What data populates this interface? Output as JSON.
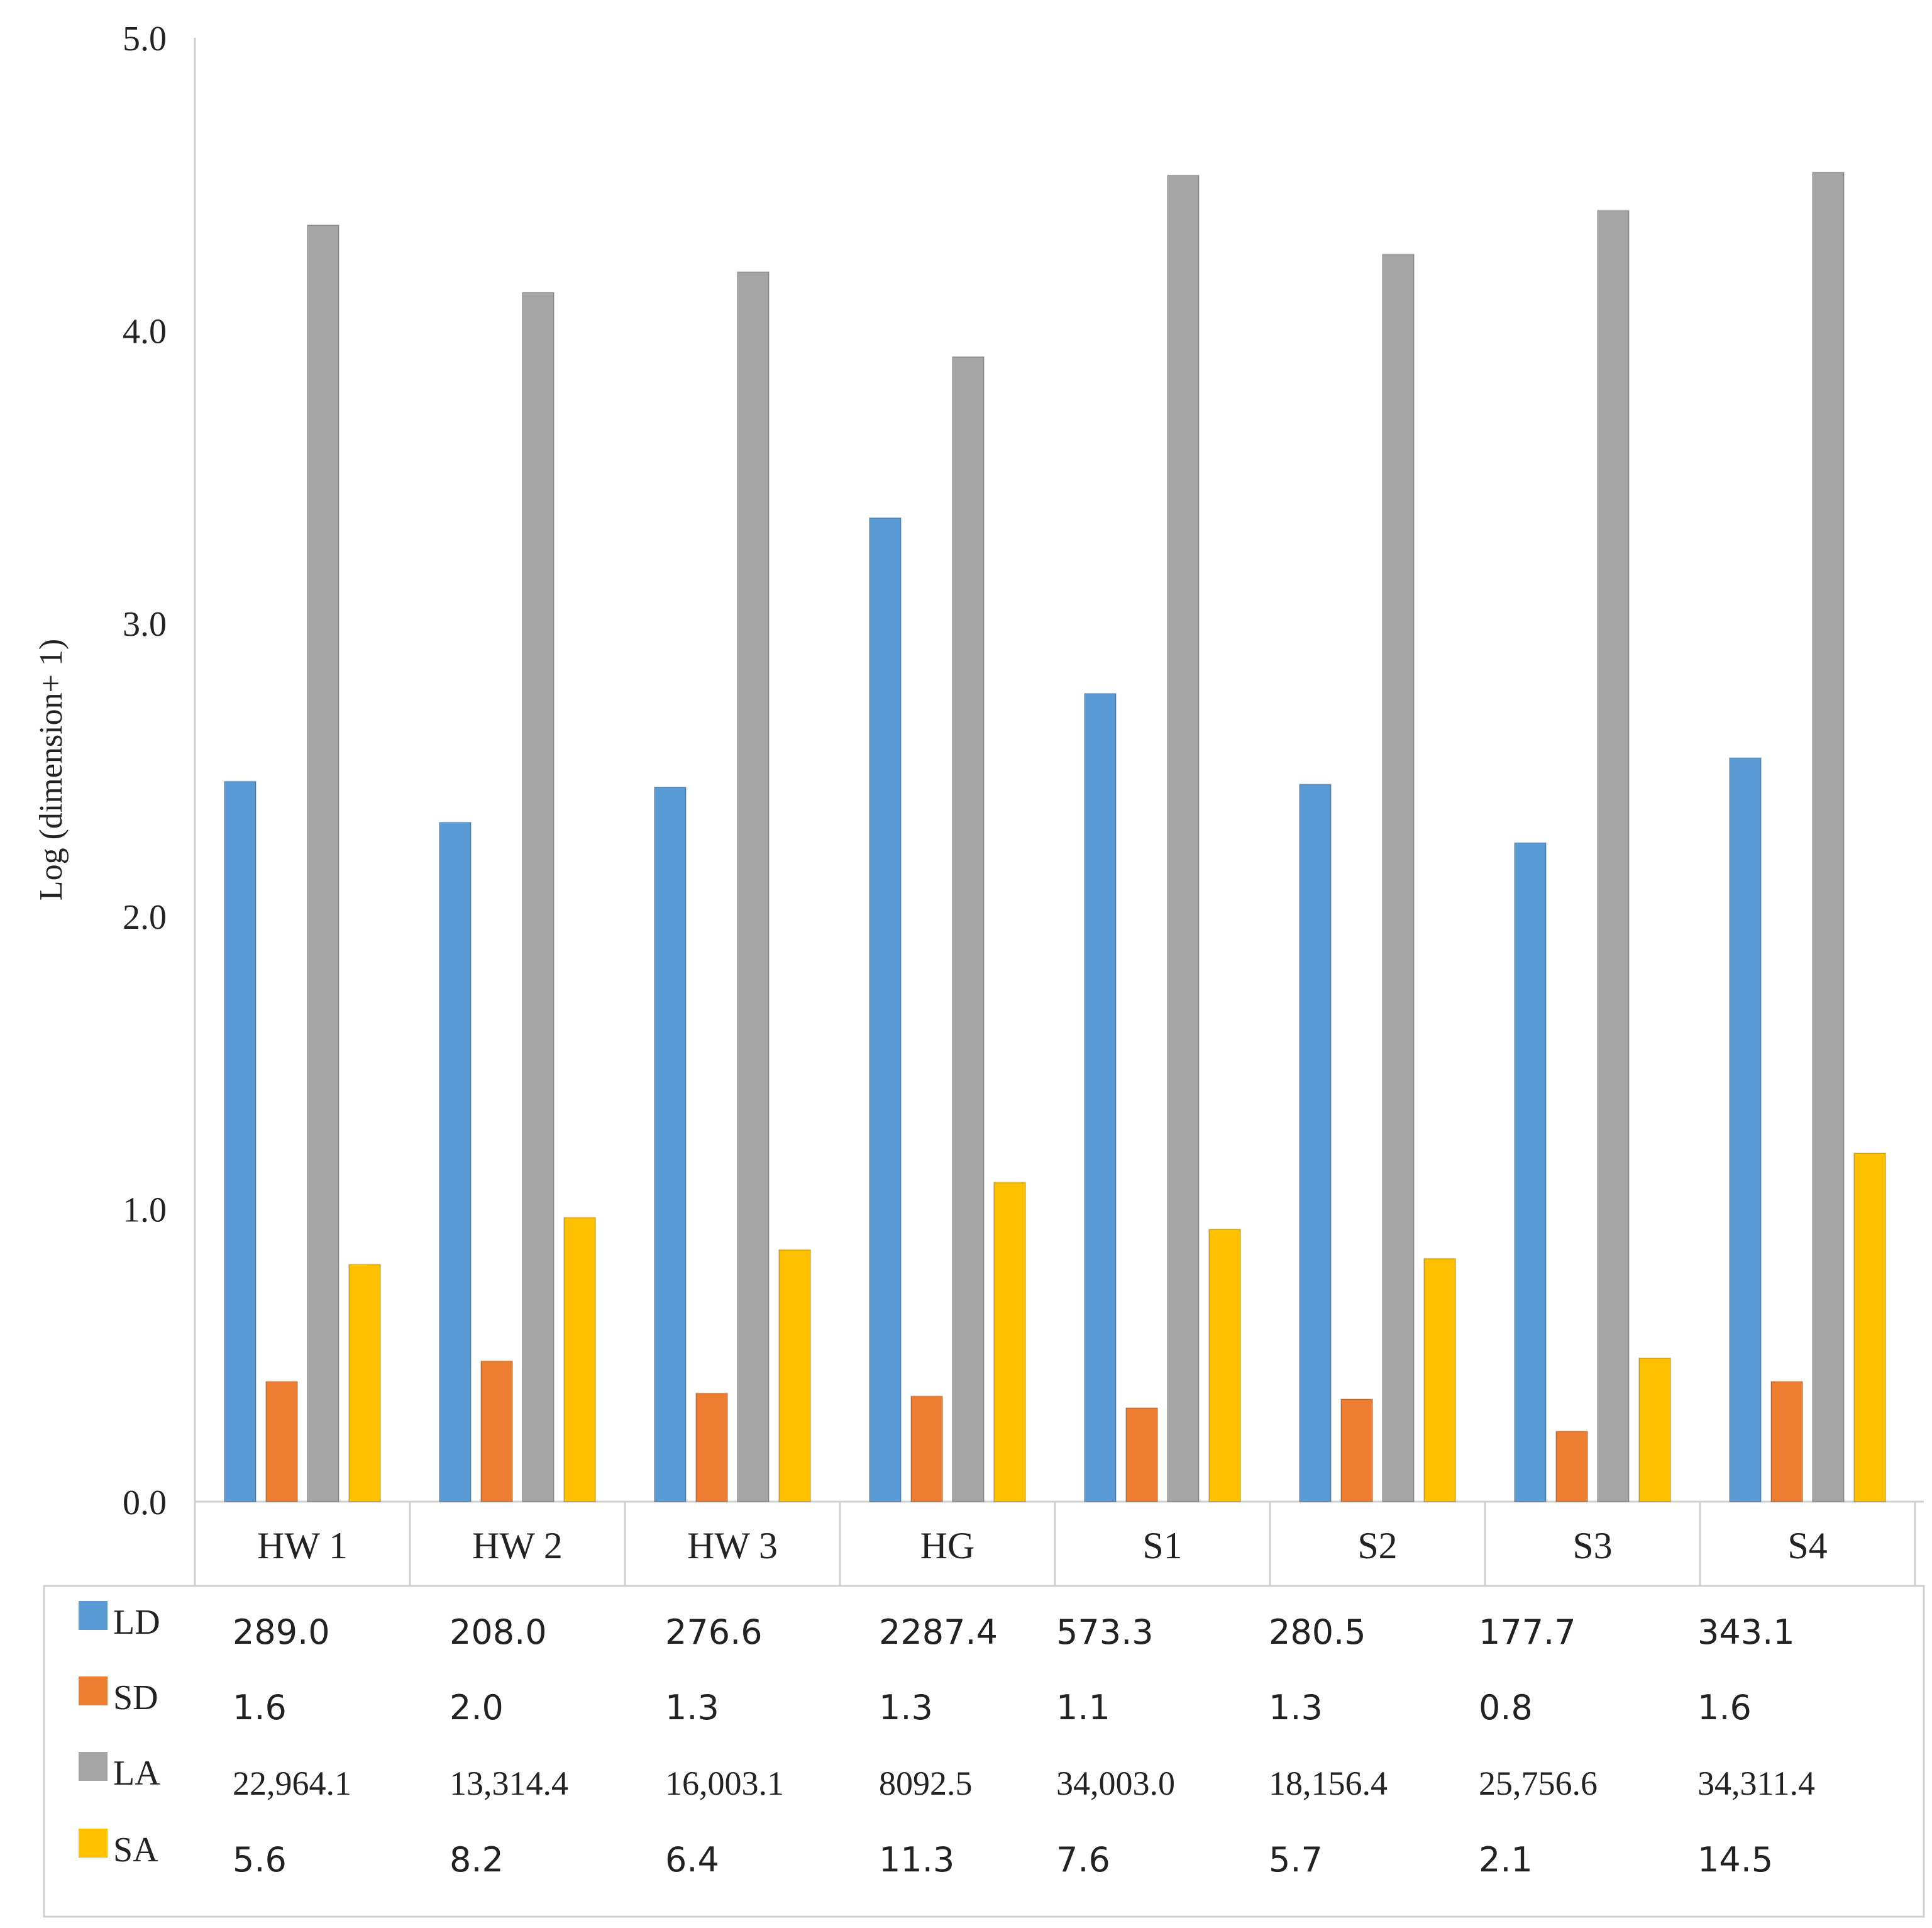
{
  "chart_data": {
    "type": "bar",
    "ylabel": "Log (dimension+ 1)",
    "xlabel": "",
    "ylim": [
      0,
      5
    ],
    "yticks": [
      "0.0",
      "1.0",
      "2.0",
      "3.0",
      "4.0",
      "5.0"
    ],
    "categories": [
      "HW 1",
      "HW 2",
      "HW 3",
      "HG",
      "S1",
      "S2",
      "S3",
      "S4"
    ],
    "series": [
      {
        "name": "LD",
        "color": "#5b9bd5",
        "values": [
          2.46,
          2.32,
          2.44,
          3.36,
          2.76,
          2.45,
          2.25,
          2.54
        ],
        "table": [
          "289.0",
          "208.0",
          "276.6",
          "2287.4",
          "573.3",
          "280.5",
          "177.7",
          "343.1"
        ]
      },
      {
        "name": "SD",
        "color": "#ed7d31",
        "values": [
          0.41,
          0.48,
          0.37,
          0.36,
          0.32,
          0.35,
          0.24,
          0.41
        ],
        "table": [
          "1.6",
          "2.0",
          "1.3",
          "1.3",
          "1.1",
          "1.3",
          "0.8",
          "1.6"
        ]
      },
      {
        "name": "LA",
        "color": "#a5a5a5",
        "values": [
          4.36,
          4.13,
          4.2,
          3.91,
          4.53,
          4.26,
          4.41,
          4.54
        ],
        "table": [
          "22,964.1",
          "13,314.4",
          "16,003.1",
          "8092.5",
          "34,003.0",
          "18,156.4",
          "25,756.6",
          "34,311.4"
        ]
      },
      {
        "name": "SA",
        "color": "#ffc000",
        "values": [
          0.81,
          0.97,
          0.86,
          1.09,
          0.93,
          0.83,
          0.49,
          1.19
        ],
        "table": [
          "5.6",
          "8.2",
          "6.4",
          "11.3",
          "7.6",
          "5.7",
          "2.1",
          "14.5"
        ]
      }
    ],
    "legend": "data-table"
  }
}
